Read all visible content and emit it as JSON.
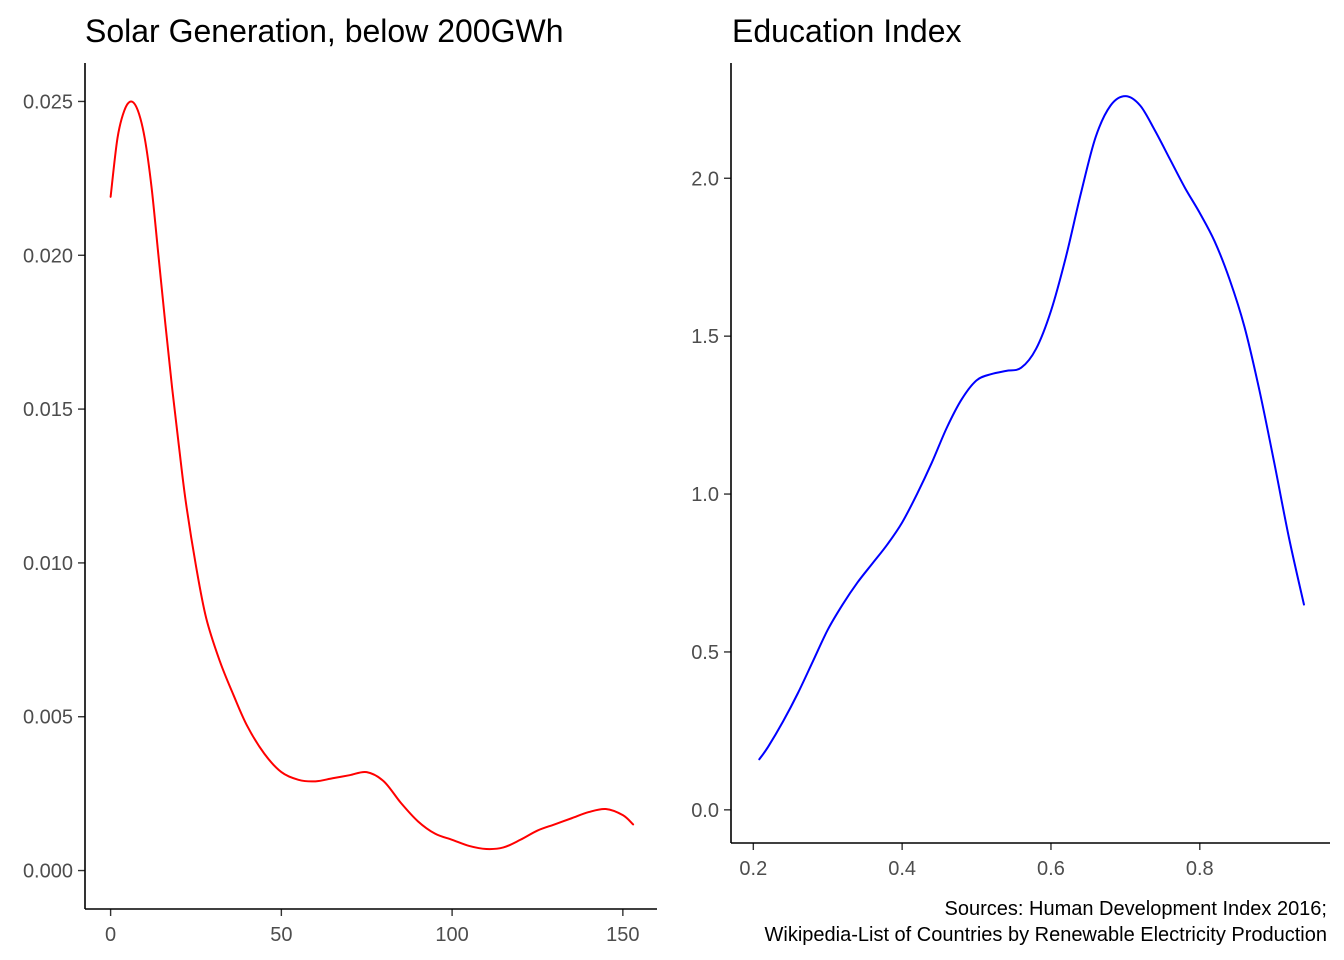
{
  "chart_data": [
    {
      "type": "line",
      "title": "Solar Generation, below 200GWh",
      "xlabel": "",
      "ylabel": "",
      "xlim": [
        -7.5,
        160
      ],
      "ylim": [
        -0.00125,
        0.02625
      ],
      "x_ticks": [
        0,
        50,
        100,
        150
      ],
      "x_tick_labels": [
        "0",
        "50",
        "100",
        "150"
      ],
      "y_ticks": [
        0.0,
        0.005,
        0.01,
        0.015,
        0.02,
        0.025
      ],
      "y_tick_labels": [
        "0.000",
        "0.005",
        "0.010",
        "0.015",
        "0.020",
        "0.025"
      ],
      "grid": false,
      "color": "#ff0000",
      "series": [
        {
          "x": [
            0,
            2,
            4,
            6,
            8,
            10,
            12,
            14,
            16,
            18,
            20,
            22,
            25,
            28,
            32,
            36,
            40,
            45,
            50,
            55,
            60,
            65,
            70,
            75,
            80,
            85,
            90,
            95,
            100,
            105,
            110,
            115,
            120,
            125,
            130,
            135,
            140,
            145,
            150,
            153
          ],
          "y": [
            0.0219,
            0.0238,
            0.0247,
            0.025,
            0.0247,
            0.0238,
            0.0222,
            0.02,
            0.0178,
            0.0157,
            0.0138,
            0.012,
            0.0099,
            0.0082,
            0.0068,
            0.0057,
            0.0047,
            0.0038,
            0.0032,
            0.00295,
            0.0029,
            0.003,
            0.0031,
            0.0032,
            0.0029,
            0.0022,
            0.0016,
            0.0012,
            0.001,
            0.0008,
            0.0007,
            0.00075,
            0.001,
            0.0013,
            0.0015,
            0.0017,
            0.0019,
            0.002,
            0.0018,
            0.0015
          ]
        }
      ]
    },
    {
      "type": "line",
      "title": "Education Index",
      "xlabel": "",
      "ylabel": "",
      "xlim": [
        0.17,
        0.975
      ],
      "ylim": [
        -0.105,
        2.365
      ],
      "x_ticks": [
        0.2,
        0.4,
        0.6,
        0.8
      ],
      "x_tick_labels": [
        "0.2",
        "0.4",
        "0.6",
        "0.8"
      ],
      "y_ticks": [
        0.0,
        0.5,
        1.0,
        1.5,
        2.0
      ],
      "y_tick_labels": [
        "0.0",
        "0.5",
        "1.0",
        "1.5",
        "2.0"
      ],
      "grid": false,
      "color": "#0000ff",
      "series": [
        {
          "x": [
            0.208,
            0.22,
            0.24,
            0.26,
            0.28,
            0.3,
            0.32,
            0.34,
            0.36,
            0.38,
            0.4,
            0.42,
            0.44,
            0.46,
            0.48,
            0.5,
            0.52,
            0.54,
            0.56,
            0.58,
            0.6,
            0.62,
            0.64,
            0.66,
            0.68,
            0.7,
            0.72,
            0.74,
            0.76,
            0.78,
            0.8,
            0.82,
            0.84,
            0.86,
            0.88,
            0.9,
            0.92,
            0.94
          ],
          "y": [
            0.16,
            0.2,
            0.28,
            0.37,
            0.47,
            0.57,
            0.65,
            0.72,
            0.78,
            0.84,
            0.91,
            1.0,
            1.1,
            1.21,
            1.3,
            1.36,
            1.38,
            1.39,
            1.4,
            1.46,
            1.58,
            1.75,
            1.95,
            2.13,
            2.23,
            2.26,
            2.23,
            2.15,
            2.06,
            1.97,
            1.89,
            1.8,
            1.68,
            1.53,
            1.33,
            1.1,
            0.86,
            0.65
          ]
        }
      ]
    }
  ],
  "caption": {
    "line1": "Sources: Human Development Index 2016;",
    "line2": "Wikipedia-List of Countries by Renewable Electricity Production"
  }
}
